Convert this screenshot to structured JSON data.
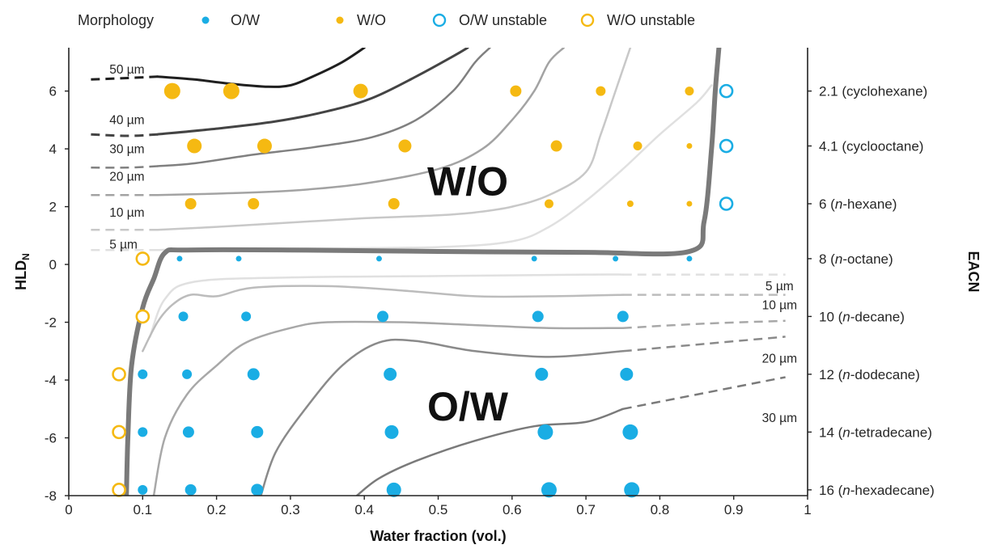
{
  "chart_data": {
    "type": "scatter",
    "xlabel": "Water fraction (vol.)",
    "ylabel_main": "HLD",
    "ylabel_sub": "N",
    "ylabel_right": "EACN",
    "xlim": [
      0,
      1
    ],
    "ylim": [
      -8,
      7.5
    ],
    "xticks": [
      "0",
      "0.1",
      "0.2",
      "0.3",
      "0.4",
      "0.5",
      "0.6",
      "0.7",
      "0.8",
      "0.9",
      "1"
    ],
    "yticks": [
      "-8",
      "-6",
      "-4",
      "-2",
      "0",
      "2",
      "4",
      "6"
    ],
    "legend": {
      "title": "Morphology",
      "entries": [
        "O/W",
        "W/O",
        "O/W unstable",
        "W/O unstable"
      ]
    },
    "colors": {
      "ow": "#1AADE4",
      "wo": "#F5B912",
      "frame": "#222222"
    },
    "regions": [
      {
        "label": "W/O",
        "x": 0.54,
        "y": 2.9
      },
      {
        "label": "O/W",
        "x": 0.54,
        "y": -4.9
      }
    ],
    "right_axis": [
      {
        "y": 6,
        "prefix": "2.1 (cyclohexane)",
        "italic": "",
        "suffix": ""
      },
      {
        "y": 4.1,
        "prefix": "4.1 (cyclooctane)",
        "italic": "",
        "suffix": ""
      },
      {
        "y": 2.1,
        "prefix": "6 (",
        "italic": "n",
        "suffix": "-hexane)"
      },
      {
        "y": 0.2,
        "prefix": "8 (",
        "italic": "n",
        "suffix": "-octane)"
      },
      {
        "y": -1.8,
        "prefix": "10 (",
        "italic": "n",
        "suffix": "-decane)"
      },
      {
        "y": -3.8,
        "prefix": "12 (",
        "italic": "n",
        "suffix": "-dodecane)"
      },
      {
        "y": -5.8,
        "prefix": "14 (",
        "italic": "n",
        "suffix": "-tetradecane)"
      },
      {
        "y": -7.8,
        "prefix": "16 (",
        "italic": "n",
        "suffix": "-hexadecane)"
      }
    ],
    "series": [
      {
        "name": "O/W",
        "points": [
          {
            "x": 0.15,
            "y": 0.2,
            "s": 3.5
          },
          {
            "x": 0.23,
            "y": 0.2,
            "s": 3.5
          },
          {
            "x": 0.42,
            "y": 0.2,
            "s": 3.5
          },
          {
            "x": 0.63,
            "y": 0.2,
            "s": 3.5
          },
          {
            "x": 0.74,
            "y": 0.2,
            "s": 3.5
          },
          {
            "x": 0.84,
            "y": 0.2,
            "s": 3.5
          },
          {
            "x": 0.155,
            "y": -1.8,
            "s": 6
          },
          {
            "x": 0.24,
            "y": -1.8,
            "s": 6
          },
          {
            "x": 0.425,
            "y": -1.8,
            "s": 7
          },
          {
            "x": 0.635,
            "y": -1.8,
            "s": 7
          },
          {
            "x": 0.75,
            "y": -1.8,
            "s": 7
          },
          {
            "x": 0.1,
            "y": -3.8,
            "s": 6
          },
          {
            "x": 0.16,
            "y": -3.8,
            "s": 6
          },
          {
            "x": 0.25,
            "y": -3.8,
            "s": 7.5
          },
          {
            "x": 0.435,
            "y": -3.8,
            "s": 8
          },
          {
            "x": 0.64,
            "y": -3.8,
            "s": 8
          },
          {
            "x": 0.755,
            "y": -3.8,
            "s": 8
          },
          {
            "x": 0.1,
            "y": -5.8,
            "s": 6
          },
          {
            "x": 0.162,
            "y": -5.8,
            "s": 7
          },
          {
            "x": 0.255,
            "y": -5.8,
            "s": 7.5
          },
          {
            "x": 0.437,
            "y": -5.8,
            "s": 8.5
          },
          {
            "x": 0.645,
            "y": -5.8,
            "s": 9.5
          },
          {
            "x": 0.76,
            "y": -5.8,
            "s": 9.5
          },
          {
            "x": 0.1,
            "y": -7.8,
            "s": 6
          },
          {
            "x": 0.165,
            "y": -7.8,
            "s": 7
          },
          {
            "x": 0.255,
            "y": -7.8,
            "s": 7.5
          },
          {
            "x": 0.44,
            "y": -7.8,
            "s": 9
          },
          {
            "x": 0.65,
            "y": -7.8,
            "s": 9.5
          },
          {
            "x": 0.762,
            "y": -7.8,
            "s": 9.5
          }
        ]
      },
      {
        "name": "W/O",
        "points": [
          {
            "x": 0.14,
            "y": 6,
            "s": 10
          },
          {
            "x": 0.22,
            "y": 6,
            "s": 10
          },
          {
            "x": 0.395,
            "y": 6,
            "s": 9
          },
          {
            "x": 0.605,
            "y": 6,
            "s": 7
          },
          {
            "x": 0.72,
            "y": 6,
            "s": 6
          },
          {
            "x": 0.84,
            "y": 6,
            "s": 5.5
          },
          {
            "x": 0.17,
            "y": 4.1,
            "s": 9
          },
          {
            "x": 0.265,
            "y": 4.1,
            "s": 9
          },
          {
            "x": 0.455,
            "y": 4.1,
            "s": 8
          },
          {
            "x": 0.66,
            "y": 4.1,
            "s": 7
          },
          {
            "x": 0.77,
            "y": 4.1,
            "s": 5.5
          },
          {
            "x": 0.84,
            "y": 4.1,
            "s": 3.5
          },
          {
            "x": 0.165,
            "y": 2.1,
            "s": 7
          },
          {
            "x": 0.25,
            "y": 2.1,
            "s": 7
          },
          {
            "x": 0.44,
            "y": 2.1,
            "s": 7
          },
          {
            "x": 0.65,
            "y": 2.1,
            "s": 5.5
          },
          {
            "x": 0.76,
            "y": 2.1,
            "s": 4
          },
          {
            "x": 0.84,
            "y": 2.1,
            "s": 3.5
          }
        ]
      },
      {
        "name": "O/W unstable",
        "points": [
          {
            "x": 0.89,
            "y": 6
          },
          {
            "x": 0.89,
            "y": 4.1
          },
          {
            "x": 0.89,
            "y": 2.1
          }
        ]
      },
      {
        "name": "W/O unstable",
        "points": [
          {
            "x": 0.1,
            "y": 0.2
          },
          {
            "x": 0.1,
            "y": -1.8
          },
          {
            "x": 0.068,
            "y": -3.8
          },
          {
            "x": 0.068,
            "y": -5.8
          },
          {
            "x": 0.068,
            "y": -7.8
          }
        ]
      }
    ],
    "boundary": [
      [
        0.078,
        -8
      ],
      [
        0.08,
        -6
      ],
      [
        0.085,
        -3.5
      ],
      [
        0.1,
        -1.5
      ],
      [
        0.115,
        -0.5
      ],
      [
        0.13,
        0.4
      ],
      [
        0.16,
        0.5
      ],
      [
        0.3,
        0.5
      ],
      [
        0.5,
        0.45
      ],
      [
        0.7,
        0.42
      ],
      [
        0.84,
        0.45
      ],
      [
        0.86,
        1.5
      ],
      [
        0.87,
        4
      ],
      [
        0.875,
        6
      ],
      [
        0.88,
        7.5
      ]
    ],
    "contours": [
      {
        "label": "50 µm",
        "lx": 0.055,
        "ly": 6.6,
        "color": "#1f1f1f",
        "width": 3,
        "dashed": [
          [
            0.03,
            6.4
          ],
          [
            0.08,
            6.45
          ],
          [
            0.12,
            6.5
          ]
        ],
        "solid": [
          [
            0.12,
            6.5
          ],
          [
            0.17,
            6.4
          ],
          [
            0.22,
            6.25
          ],
          [
            0.27,
            6.15
          ],
          [
            0.3,
            6.2
          ],
          [
            0.33,
            6.5
          ],
          [
            0.37,
            7
          ],
          [
            0.4,
            7.5
          ]
        ]
      },
      {
        "label": "40 µm",
        "lx": 0.055,
        "ly": 4.85,
        "color": "#444444",
        "width": 3,
        "dashed": [
          [
            0.03,
            4.5
          ],
          [
            0.08,
            4.45
          ],
          [
            0.12,
            4.5
          ]
        ],
        "solid": [
          [
            0.12,
            4.5
          ],
          [
            0.2,
            4.7
          ],
          [
            0.28,
            4.95
          ],
          [
            0.35,
            5.3
          ],
          [
            0.41,
            5.75
          ],
          [
            0.47,
            6.5
          ],
          [
            0.52,
            7.2
          ],
          [
            0.54,
            7.5
          ]
        ]
      },
      {
        "label": "30 µm",
        "lx": 0.055,
        "ly": 3.85,
        "color": "#808080",
        "width": 2.5,
        "dashed": [
          [
            0.03,
            3.35
          ],
          [
            0.08,
            3.35
          ],
          [
            0.12,
            3.4
          ]
        ],
        "solid": [
          [
            0.12,
            3.4
          ],
          [
            0.17,
            3.5
          ],
          [
            0.25,
            3.8
          ],
          [
            0.33,
            4.05
          ],
          [
            0.41,
            4.4
          ],
          [
            0.47,
            5
          ],
          [
            0.52,
            6
          ],
          [
            0.55,
            7
          ],
          [
            0.57,
            7.5
          ]
        ]
      },
      {
        "label": "20 µm",
        "lx": 0.055,
        "ly": 2.9,
        "color": "#a3a3a3",
        "width": 2.5,
        "dashed": [
          [
            0.03,
            2.4
          ],
          [
            0.08,
            2.4
          ],
          [
            0.12,
            2.4
          ]
        ],
        "solid": [
          [
            0.12,
            2.4
          ],
          [
            0.2,
            2.45
          ],
          [
            0.3,
            2.55
          ],
          [
            0.4,
            2.8
          ],
          [
            0.5,
            3.3
          ],
          [
            0.56,
            4
          ],
          [
            0.6,
            5
          ],
          [
            0.63,
            6
          ],
          [
            0.65,
            7
          ],
          [
            0.67,
            7.5
          ]
        ]
      },
      {
        "label": "10 µm",
        "lx": 0.055,
        "ly": 1.65,
        "color": "#c8c8c8",
        "width": 2.5,
        "dashed": [
          [
            0.03,
            1.2
          ],
          [
            0.08,
            1.2
          ],
          [
            0.12,
            1.2
          ]
        ],
        "solid": [
          [
            0.12,
            1.2
          ],
          [
            0.2,
            1.3
          ],
          [
            0.3,
            1.45
          ],
          [
            0.4,
            1.6
          ],
          [
            0.45,
            1.65
          ],
          [
            0.5,
            1.7
          ],
          [
            0.55,
            1.8
          ],
          [
            0.6,
            2
          ],
          [
            0.65,
            2.4
          ],
          [
            0.7,
            3.2
          ],
          [
            0.72,
            4.5
          ],
          [
            0.74,
            6
          ],
          [
            0.76,
            7.5
          ]
        ]
      },
      {
        "label": "5 µm",
        "lx": 0.055,
        "ly": 0.55,
        "color": "#e0e0e0",
        "width": 2.5,
        "dashed": [
          [
            0.03,
            0.5
          ],
          [
            0.08,
            0.5
          ],
          [
            0.12,
            0.5
          ]
        ],
        "solid": [
          [
            0.12,
            0.5
          ],
          [
            0.16,
            0.52
          ],
          [
            0.3,
            0.55
          ],
          [
            0.5,
            0.6
          ],
          [
            0.6,
            0.8
          ],
          [
            0.65,
            1.3
          ],
          [
            0.7,
            2.2
          ],
          [
            0.75,
            3.3
          ],
          [
            0.8,
            4.5
          ],
          [
            0.85,
            5.6
          ],
          [
            0.87,
            6.2
          ]
        ]
      },
      {
        "label": "5 µm",
        "lx": 0.962,
        "ly": -0.9,
        "color": "#e0e0e0",
        "width": 2.5,
        "solid": [
          [
            0.11,
            -2.5
          ],
          [
            0.13,
            -1.2
          ],
          [
            0.17,
            -0.6
          ],
          [
            0.3,
            -0.45
          ],
          [
            0.5,
            -0.4
          ],
          [
            0.7,
            -0.35
          ],
          [
            0.75,
            -0.35
          ]
        ],
        "dashed": [
          [
            0.75,
            -0.35
          ],
          [
            0.85,
            -0.35
          ],
          [
            0.97,
            -0.35
          ]
        ]
      },
      {
        "label": "10 µm",
        "lx": 0.962,
        "ly": -1.55,
        "color": "#bcbcbc",
        "width": 2.5,
        "solid": [
          [
            0.1,
            -3
          ],
          [
            0.12,
            -2
          ],
          [
            0.14,
            -1.4
          ],
          [
            0.165,
            -1.05
          ],
          [
            0.2,
            -1.1
          ],
          [
            0.25,
            -0.8
          ],
          [
            0.35,
            -0.75
          ],
          [
            0.45,
            -0.9
          ],
          [
            0.55,
            -1.1
          ],
          [
            0.65,
            -1.1
          ],
          [
            0.75,
            -1.05
          ]
        ],
        "dashed": [
          [
            0.75,
            -1.05
          ],
          [
            0.85,
            -1.05
          ],
          [
            0.97,
            -1.05
          ]
        ]
      },
      {
        "label": "20 µm",
        "lx": 0.962,
        "ly": -3.4,
        "color": "#a8a8a8",
        "width": 2.5,
        "solid": [
          [
            0.115,
            -8
          ],
          [
            0.13,
            -6
          ],
          [
            0.16,
            -4.5
          ],
          [
            0.2,
            -3.5
          ],
          [
            0.24,
            -2.7
          ],
          [
            0.3,
            -2.2
          ],
          [
            0.35,
            -2
          ],
          [
            0.45,
            -2
          ],
          [
            0.55,
            -2.1
          ],
          [
            0.65,
            -2.2
          ],
          [
            0.75,
            -2.2
          ]
        ],
        "dashed": [
          [
            0.75,
            -2.2
          ],
          [
            0.86,
            -2.05
          ],
          [
            0.97,
            -1.95
          ]
        ]
      },
      {
        "label": "30 µm",
        "lx": 0.962,
        "ly": -5.45,
        "color": "#8a8a8a",
        "width": 2.5,
        "solid": [
          [
            0.26,
            -8
          ],
          [
            0.28,
            -6.5
          ],
          [
            0.32,
            -5
          ],
          [
            0.37,
            -3.5
          ],
          [
            0.42,
            -2.7
          ],
          [
            0.47,
            -2.65
          ],
          [
            0.55,
            -3
          ],
          [
            0.65,
            -3.2
          ],
          [
            0.75,
            -3
          ]
        ],
        "dashed": [
          [
            0.75,
            -3
          ],
          [
            0.86,
            -2.75
          ],
          [
            0.97,
            -2.5
          ]
        ]
      },
      {
        "label": "",
        "lx": 0,
        "ly": 0,
        "color": "#7a7a7a",
        "width": 2.5,
        "solid": [
          [
            0.39,
            -8
          ],
          [
            0.42,
            -7.4
          ],
          [
            0.47,
            -6.8
          ],
          [
            0.55,
            -6.1
          ],
          [
            0.63,
            -5.6
          ],
          [
            0.7,
            -5.45
          ],
          [
            0.75,
            -5
          ]
        ],
        "dashed": [
          [
            0.75,
            -5
          ],
          [
            0.86,
            -4.45
          ],
          [
            0.97,
            -3.9
          ]
        ]
      }
    ]
  }
}
